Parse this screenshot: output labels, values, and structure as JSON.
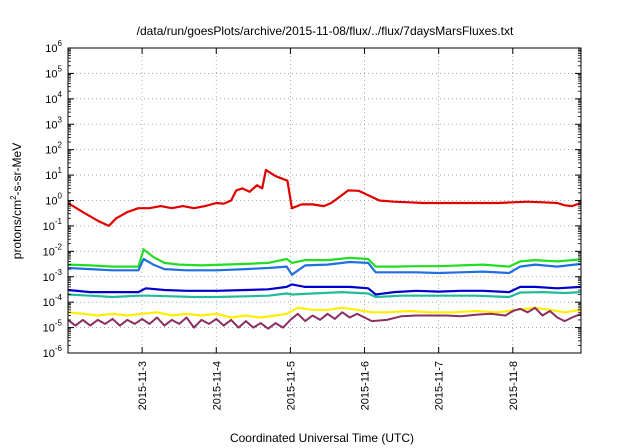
{
  "chart_data": {
    "type": "line",
    "title": "/data/run/goesPlots/archive/2015-11-08/flux/../flux/7daysMarsFluxes.txt",
    "xlabel": "Coordinated Universal Time (UTC)",
    "ylabel_html": [
      "protons/cm",
      "2",
      "-s-sr-MeV"
    ],
    "y_scale": "log",
    "ylim": [
      1e-06,
      1000000.0
    ],
    "xlim": [
      2,
      8.92
    ],
    "x_unit": "days, 2015-11",
    "grid": true,
    "y_ticks": [
      {
        "base": "10",
        "exp": "-6"
      },
      {
        "base": "10",
        "exp": "-5"
      },
      {
        "base": "10",
        "exp": "-4"
      },
      {
        "base": "10",
        "exp": "-3"
      },
      {
        "base": "10",
        "exp": "-2"
      },
      {
        "base": "10",
        "exp": "-1"
      },
      {
        "base": "10",
        "exp": "0"
      },
      {
        "base": "10",
        "exp": "1"
      },
      {
        "base": "10",
        "exp": "2"
      },
      {
        "base": "10",
        "exp": "3"
      },
      {
        "base": "10",
        "exp": "4"
      },
      {
        "base": "10",
        "exp": "5"
      },
      {
        "base": "10",
        "exp": "6"
      }
    ],
    "x_ticks": [
      {
        "x": 3,
        "label": "2015-11-3"
      },
      {
        "x": 4,
        "label": "2015-11-4"
      },
      {
        "x": 5,
        "label": "2015-11-5"
      },
      {
        "x": 6,
        "label": "2015-11-6"
      },
      {
        "x": 7,
        "label": "2015-11-7"
      },
      {
        "x": 8,
        "label": "2015-11-8"
      }
    ],
    "series": [
      {
        "color": "#e00000",
        "width": 2.2,
        "points": [
          [
            2.0,
            0.8
          ],
          [
            2.2,
            0.35
          ],
          [
            2.4,
            0.16
          ],
          [
            2.55,
            0.1
          ],
          [
            2.65,
            0.2
          ],
          [
            2.8,
            0.35
          ],
          [
            2.95,
            0.5
          ],
          [
            3.1,
            0.5
          ],
          [
            3.25,
            0.6
          ],
          [
            3.4,
            0.5
          ],
          [
            3.55,
            0.6
          ],
          [
            3.7,
            0.5
          ],
          [
            3.85,
            0.6
          ],
          [
            4.0,
            0.8
          ],
          [
            4.1,
            0.75
          ],
          [
            4.2,
            1.0
          ],
          [
            4.27,
            2.5
          ],
          [
            4.35,
            3.0
          ],
          [
            4.45,
            2.2
          ],
          [
            4.55,
            4.0
          ],
          [
            4.62,
            3.0
          ],
          [
            4.67,
            16.0
          ],
          [
            4.8,
            9.0
          ],
          [
            4.96,
            6.0
          ],
          [
            5.02,
            0.5
          ],
          [
            5.15,
            0.7
          ],
          [
            5.3,
            0.7
          ],
          [
            5.45,
            0.6
          ],
          [
            5.55,
            0.8
          ],
          [
            5.65,
            1.3
          ],
          [
            5.78,
            2.5
          ],
          [
            5.92,
            2.4
          ],
          [
            6.05,
            1.6
          ],
          [
            6.2,
            1.0
          ],
          [
            6.4,
            0.9
          ],
          [
            6.6,
            0.85
          ],
          [
            6.8,
            0.8
          ],
          [
            7.0,
            0.8
          ],
          [
            7.2,
            0.8
          ],
          [
            7.4,
            0.8
          ],
          [
            7.6,
            0.8
          ],
          [
            7.8,
            0.8
          ],
          [
            8.0,
            0.85
          ],
          [
            8.2,
            0.9
          ],
          [
            8.4,
            0.85
          ],
          [
            8.6,
            0.8
          ],
          [
            8.7,
            0.65
          ],
          [
            8.8,
            0.6
          ],
          [
            8.92,
            0.8
          ]
        ]
      },
      {
        "color": "#22dd22",
        "width": 2.2,
        "points": [
          [
            2.0,
            0.003
          ],
          [
            2.3,
            0.0028
          ],
          [
            2.6,
            0.0025
          ],
          [
            2.95,
            0.0025
          ],
          [
            3.02,
            0.012
          ],
          [
            3.15,
            0.006
          ],
          [
            3.3,
            0.0035
          ],
          [
            3.5,
            0.003
          ],
          [
            3.8,
            0.0028
          ],
          [
            4.1,
            0.003
          ],
          [
            4.4,
            0.0032
          ],
          [
            4.7,
            0.0035
          ],
          [
            4.95,
            0.005
          ],
          [
            5.02,
            0.0035
          ],
          [
            5.2,
            0.0045
          ],
          [
            5.5,
            0.0045
          ],
          [
            5.8,
            0.0055
          ],
          [
            6.05,
            0.005
          ],
          [
            6.15,
            0.0025
          ],
          [
            6.4,
            0.0025
          ],
          [
            6.7,
            0.0026
          ],
          [
            7.0,
            0.0026
          ],
          [
            7.3,
            0.0028
          ],
          [
            7.6,
            0.003
          ],
          [
            7.95,
            0.0025
          ],
          [
            8.1,
            0.004
          ],
          [
            8.3,
            0.0045
          ],
          [
            8.6,
            0.004
          ],
          [
            8.92,
            0.0048
          ]
        ]
      },
      {
        "color": "#1f6fe0",
        "width": 2.2,
        "points": [
          [
            2.0,
            0.0022
          ],
          [
            2.3,
            0.002
          ],
          [
            2.6,
            0.0018
          ],
          [
            2.95,
            0.0018
          ],
          [
            3.02,
            0.005
          ],
          [
            3.15,
            0.003
          ],
          [
            3.3,
            0.002
          ],
          [
            3.6,
            0.0018
          ],
          [
            4.0,
            0.0018
          ],
          [
            4.4,
            0.002
          ],
          [
            4.7,
            0.0022
          ],
          [
            4.95,
            0.0025
          ],
          [
            5.02,
            0.0012
          ],
          [
            5.2,
            0.0028
          ],
          [
            5.5,
            0.003
          ],
          [
            5.8,
            0.0038
          ],
          [
            6.05,
            0.0035
          ],
          [
            6.15,
            0.0015
          ],
          [
            6.4,
            0.0015
          ],
          [
            6.7,
            0.0015
          ],
          [
            7.0,
            0.0014
          ],
          [
            7.3,
            0.0015
          ],
          [
            7.6,
            0.0016
          ],
          [
            7.95,
            0.0014
          ],
          [
            8.1,
            0.0025
          ],
          [
            8.3,
            0.003
          ],
          [
            8.6,
            0.0025
          ],
          [
            8.92,
            0.0032
          ]
        ]
      },
      {
        "color": "#0000cc",
        "width": 2.2,
        "points": [
          [
            2.0,
            0.0003
          ],
          [
            2.3,
            0.00025
          ],
          [
            2.6,
            0.00025
          ],
          [
            2.95,
            0.00025
          ],
          [
            3.05,
            0.00035
          ],
          [
            3.3,
            0.0003
          ],
          [
            3.6,
            0.00028
          ],
          [
            4.0,
            0.00028
          ],
          [
            4.4,
            0.0003
          ],
          [
            4.7,
            0.00032
          ],
          [
            4.95,
            0.0004
          ],
          [
            5.02,
            0.0005
          ],
          [
            5.2,
            0.0004
          ],
          [
            5.5,
            0.0004
          ],
          [
            5.8,
            0.0004
          ],
          [
            6.05,
            0.00035
          ],
          [
            6.15,
            0.0002
          ],
          [
            6.4,
            0.00025
          ],
          [
            6.7,
            0.00028
          ],
          [
            7.0,
            0.00026
          ],
          [
            7.3,
            0.00028
          ],
          [
            7.6,
            0.00028
          ],
          [
            7.95,
            0.00025
          ],
          [
            8.1,
            0.0004
          ],
          [
            8.3,
            0.0004
          ],
          [
            8.6,
            0.00035
          ],
          [
            8.92,
            0.0004
          ]
        ]
      },
      {
        "color": "#22bb99",
        "width": 2.2,
        "points": [
          [
            2.0,
            0.0002
          ],
          [
            2.3,
            0.00018
          ],
          [
            2.6,
            0.00016
          ],
          [
            2.95,
            0.00018
          ],
          [
            3.1,
            0.00018
          ],
          [
            3.4,
            0.00017
          ],
          [
            3.7,
            0.00016
          ],
          [
            4.0,
            0.00016
          ],
          [
            4.4,
            0.00017
          ],
          [
            4.7,
            0.00018
          ],
          [
            4.95,
            0.00022
          ],
          [
            5.02,
            0.0002
          ],
          [
            5.3,
            0.00022
          ],
          [
            5.7,
            0.00025
          ],
          [
            6.05,
            0.00022
          ],
          [
            6.15,
            0.00016
          ],
          [
            6.5,
            0.00018
          ],
          [
            7.0,
            0.00018
          ],
          [
            7.5,
            0.00018
          ],
          [
            7.95,
            0.00016
          ],
          [
            8.1,
            0.00024
          ],
          [
            8.4,
            0.00025
          ],
          [
            8.7,
            0.00023
          ],
          [
            8.92,
            0.00025
          ]
        ]
      },
      {
        "color": "#ffee00",
        "width": 2.2,
        "points": [
          [
            2.0,
            4e-05
          ],
          [
            2.2,
            3.5e-05
          ],
          [
            2.4,
            3e-05
          ],
          [
            2.6,
            3.5e-05
          ],
          [
            2.8,
            3e-05
          ],
          [
            3.0,
            3.5e-05
          ],
          [
            3.2,
            4e-05
          ],
          [
            3.4,
            3e-05
          ],
          [
            3.6,
            3.5e-05
          ],
          [
            3.8,
            3e-05
          ],
          [
            4.0,
            3.5e-05
          ],
          [
            4.2,
            2.5e-05
          ],
          [
            4.4,
            3e-05
          ],
          [
            4.6,
            2.5e-05
          ],
          [
            4.8,
            3e-05
          ],
          [
            4.95,
            3.5e-05
          ],
          [
            5.1,
            6e-05
          ],
          [
            5.3,
            5e-05
          ],
          [
            5.5,
            5e-05
          ],
          [
            5.7,
            6e-05
          ],
          [
            5.9,
            5e-05
          ],
          [
            6.1,
            4e-05
          ],
          [
            6.3,
            4e-05
          ],
          [
            6.6,
            4.5e-05
          ],
          [
            6.9,
            4e-05
          ],
          [
            7.2,
            4e-05
          ],
          [
            7.5,
            4.5e-05
          ],
          [
            7.8,
            4e-05
          ],
          [
            8.05,
            5e-05
          ],
          [
            8.3,
            6e-05
          ],
          [
            8.5,
            5e-05
          ],
          [
            8.7,
            4e-05
          ],
          [
            8.92,
            5e-05
          ]
        ]
      },
      {
        "color": "#8b2f62",
        "width": 2.0,
        "points": [
          [
            2.0,
            2e-05
          ],
          [
            2.1,
            1.2e-05
          ],
          [
            2.2,
            2e-05
          ],
          [
            2.3,
            1.2e-05
          ],
          [
            2.4,
            2e-05
          ],
          [
            2.5,
            1.4e-05
          ],
          [
            2.6,
            2.2e-05
          ],
          [
            2.7,
            1.2e-05
          ],
          [
            2.8,
            2e-05
          ],
          [
            2.9,
            1.4e-05
          ],
          [
            3.0,
            2.2e-05
          ],
          [
            3.1,
            1.4e-05
          ],
          [
            3.2,
            2.5e-05
          ],
          [
            3.3,
            1.2e-05
          ],
          [
            3.4,
            2e-05
          ],
          [
            3.5,
            1.4e-05
          ],
          [
            3.6,
            2.5e-05
          ],
          [
            3.7,
            1e-05
          ],
          [
            3.8,
            2e-05
          ],
          [
            3.9,
            1.4e-05
          ],
          [
            4.0,
            2.2e-05
          ],
          [
            4.1,
            1.2e-05
          ],
          [
            4.2,
            2e-05
          ],
          [
            4.3,
            1e-05
          ],
          [
            4.4,
            1.8e-05
          ],
          [
            4.5,
            1e-05
          ],
          [
            4.6,
            1.5e-05
          ],
          [
            4.7,
            9e-06
          ],
          [
            4.8,
            1.5e-05
          ],
          [
            4.9,
            1e-05
          ],
          [
            5.0,
            2e-05
          ],
          [
            5.1,
            3.5e-05
          ],
          [
            5.2,
            1.8e-05
          ],
          [
            5.3,
            3e-05
          ],
          [
            5.4,
            2e-05
          ],
          [
            5.5,
            3.5e-05
          ],
          [
            5.6,
            2.2e-05
          ],
          [
            5.7,
            4e-05
          ],
          [
            5.8,
            2.5e-05
          ],
          [
            5.9,
            3.5e-05
          ],
          [
            6.0,
            2.5e-05
          ],
          [
            6.1,
            1.8e-05
          ],
          [
            6.3,
            2e-05
          ],
          [
            6.5,
            2.8e-05
          ],
          [
            6.7,
            3e-05
          ],
          [
            6.9,
            3e-05
          ],
          [
            7.1,
            3e-05
          ],
          [
            7.3,
            2.8e-05
          ],
          [
            7.5,
            3.2e-05
          ],
          [
            7.7,
            3.5e-05
          ],
          [
            7.9,
            3e-05
          ],
          [
            8.0,
            4.5e-05
          ],
          [
            8.1,
            5.5e-05
          ],
          [
            8.2,
            4e-05
          ],
          [
            8.3,
            6e-05
          ],
          [
            8.4,
            3e-05
          ],
          [
            8.5,
            4.5e-05
          ],
          [
            8.6,
            2.5e-05
          ],
          [
            8.7,
            1.8e-05
          ],
          [
            8.8,
            2.5e-05
          ],
          [
            8.92,
            3.5e-05
          ]
        ]
      }
    ]
  }
}
